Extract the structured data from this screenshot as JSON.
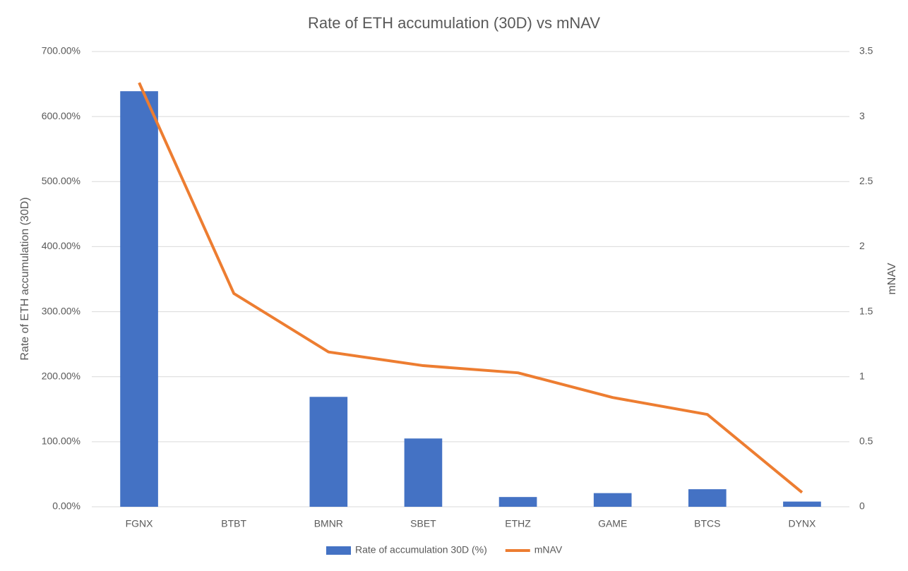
{
  "chart_data": {
    "type": "bar-line",
    "title": "Rate of ETH accumulation (30D) vs mNAV",
    "y_label": "Rate of ETH accumulation (30D)",
    "y2_label": "mNAV",
    "categories": [
      "FGNX",
      "BTBT",
      "BMNR",
      "SBET",
      "ETHZ",
      "GAME",
      "BTCS",
      "DYNX"
    ],
    "series": [
      {
        "name": "Rate of accumulation 30D (%)",
        "type": "bar",
        "color": "#4472c4",
        "values": [
          639,
          0,
          169,
          105,
          15,
          21,
          27,
          8
        ]
      },
      {
        "name": "mNAV",
        "type": "line",
        "color": "#ed7d31",
        "axis": "y2",
        "values": [
          3.26,
          1.64,
          1.19,
          1.085,
          1.03,
          0.84,
          0.71,
          0.11
        ]
      }
    ],
    "ylim": [
      0,
      700
    ],
    "yticks": [
      {
        "value": 0,
        "label": "0.00%"
      },
      {
        "value": 100,
        "label": "100.00%"
      },
      {
        "value": 200,
        "label": "200.00%"
      },
      {
        "value": 300,
        "label": "300.00%"
      },
      {
        "value": 400,
        "label": "400.00%"
      },
      {
        "value": 500,
        "label": "500.00%"
      },
      {
        "value": 600,
        "label": "600.00%"
      },
      {
        "value": 700,
        "label": "700.00%"
      }
    ],
    "y2lim": [
      0,
      3.5
    ],
    "y2ticks": [
      0,
      0.5,
      1,
      1.5,
      2,
      2.5,
      3,
      3.5
    ],
    "grid": true,
    "legend": "bottom"
  }
}
